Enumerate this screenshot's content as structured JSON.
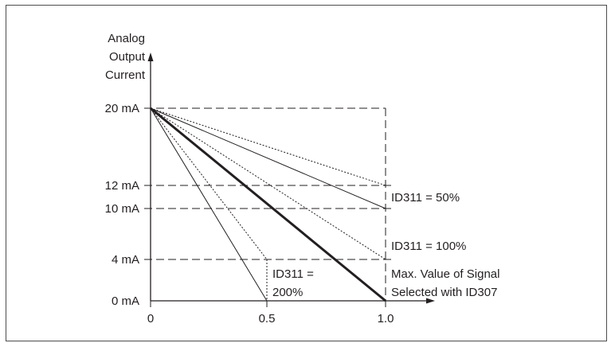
{
  "y_axis": {
    "label_lines": [
      "Analog",
      "Output",
      "Current"
    ],
    "ticks": [
      "20 mA",
      "12 mA",
      "10 mA",
      "4 mA",
      "0 mA"
    ]
  },
  "x_axis": {
    "ticks": [
      "0",
      "0.5",
      "1.0"
    ]
  },
  "annotations": {
    "id311_50": "ID311 = 50%",
    "id311_100": "ID311 = 100%",
    "id311_200_line1": "ID311 =",
    "id311_200_line2": "200%",
    "max_value_line1": "Max. Value of Signal",
    "max_value_line2": "Selected with ID307"
  },
  "colors": {
    "line": "#231f20",
    "frame": "#4d4d4d"
  }
}
